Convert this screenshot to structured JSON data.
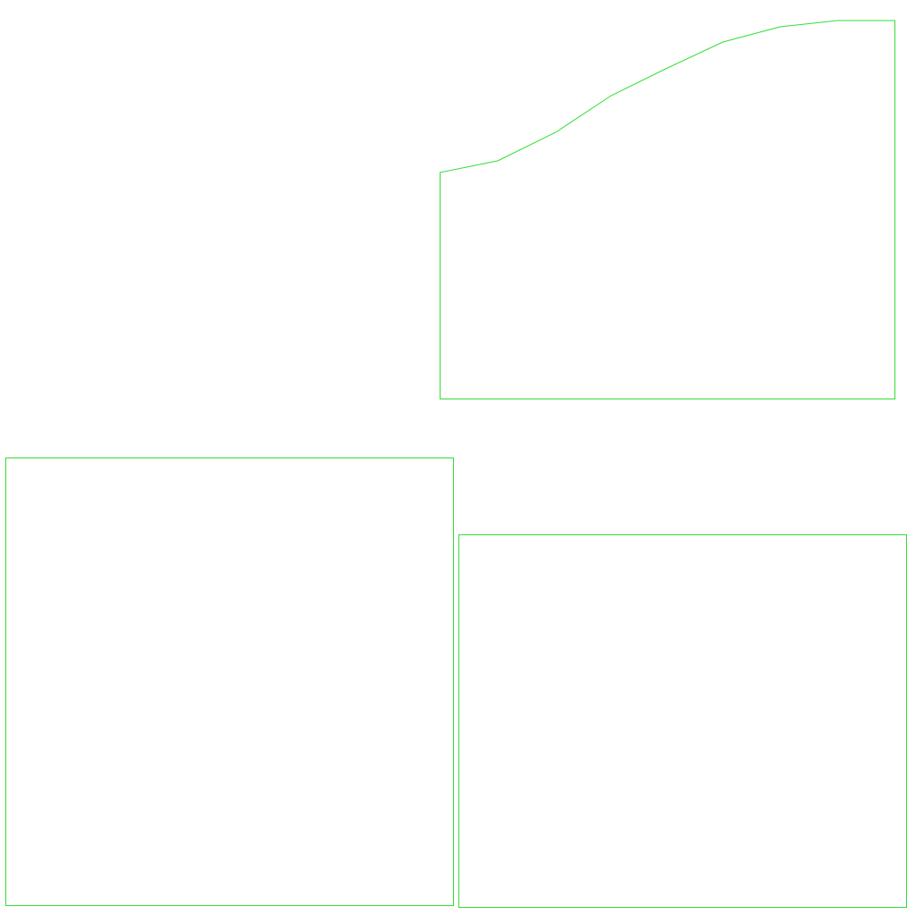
{
  "palette": {
    "background": "#ffffff",
    "outline": "#33dd33"
  },
  "shapes": [
    {
      "kind": "curved-top-panel"
    },
    {
      "kind": "rectangle"
    },
    {
      "kind": "rectangle"
    }
  ]
}
